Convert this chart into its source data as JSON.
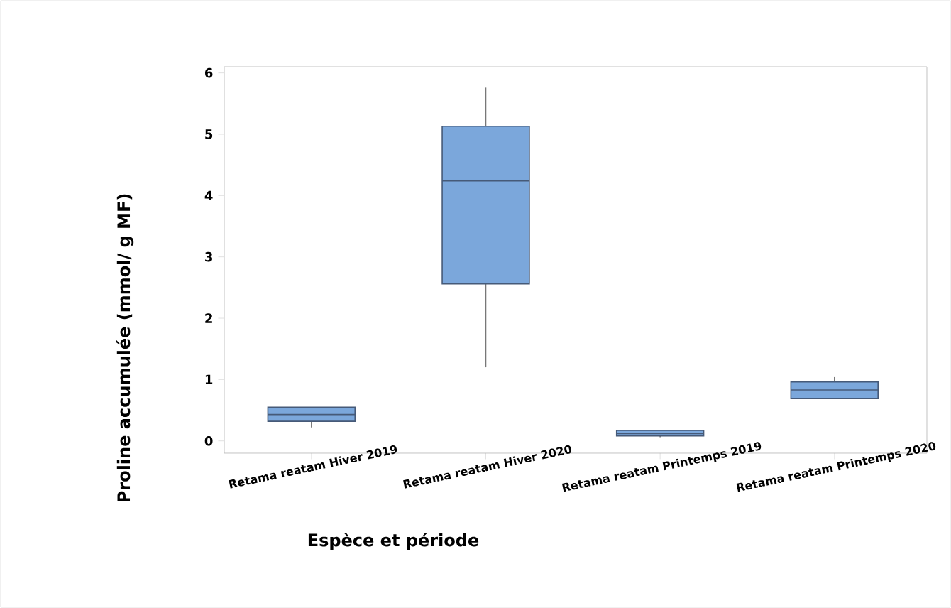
{
  "chart_data": {
    "type": "box",
    "xlabel": "Espèce et période",
    "ylabel": "Proline accumulée (mmol/ g MF)",
    "categories": [
      "Retama reatam Hiver 2019",
      "Retama reatam Hiver 2020",
      "Retama reatam Printemps 2019",
      "Retama reatam Printemps 2020"
    ],
    "boxes": [
      {
        "low": 0.22,
        "q1": 0.32,
        "median": 0.43,
        "q3": 0.55,
        "high": 0.55
      },
      {
        "low": 1.2,
        "q1": 2.56,
        "median": 4.24,
        "q3": 5.13,
        "high": 5.76
      },
      {
        "low": 0.06,
        "q1": 0.08,
        "median": 0.12,
        "q3": 0.17,
        "high": 0.17
      },
      {
        "low": 0.69,
        "q1": 0.69,
        "median": 0.83,
        "q3": 0.96,
        "high": 1.04
      }
    ],
    "color": "#7ba7db",
    "ylim": [
      -0.2,
      6.1
    ],
    "yticks": [
      0,
      1,
      2,
      3,
      4,
      5,
      6
    ]
  }
}
